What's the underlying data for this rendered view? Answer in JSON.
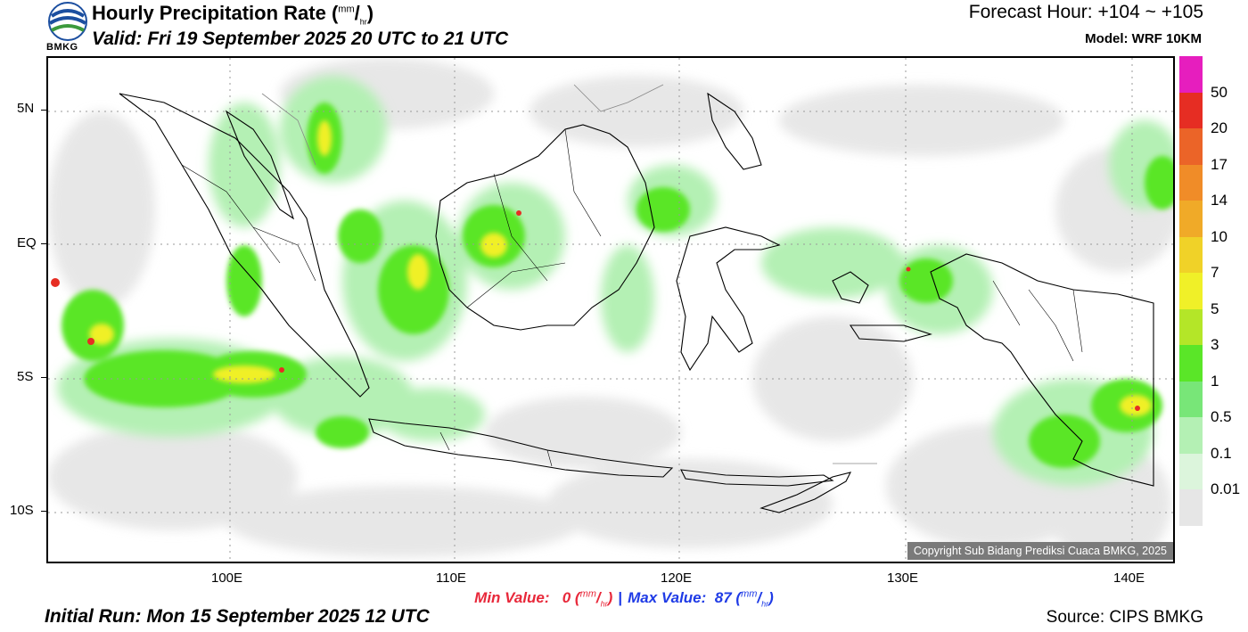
{
  "logo_text": "BMKG",
  "title": {
    "main": "Hourly Precipitation Rate (",
    "unit_num": "mm",
    "unit_den": "hr",
    "close": ")"
  },
  "valid": "Valid: Fri 19 September 2025 20 UTC to 21 UTC",
  "forecast_hour": "Forecast Hour: +104 ~ +105",
  "model": "Model: WRF 10KM",
  "lat_ticks": [
    "5N",
    "EQ",
    "5S",
    "10S"
  ],
  "lon_ticks": [
    "100E",
    "110E",
    "120E",
    "130E",
    "140E"
  ],
  "colorbar": {
    "labels": [
      "50",
      "20",
      "17",
      "14",
      "10",
      "7",
      "5",
      "3",
      "1",
      "0.5",
      "0.1",
      "0.01"
    ],
    "colors": [
      "#e61ebe",
      "#e62d23",
      "#eb6428",
      "#f08c28",
      "#f0aa28",
      "#f0d228",
      "#f0f028",
      "#b4e628",
      "#5ae628",
      "#78e678",
      "#b4f0b4",
      "#dcf5dc",
      "#e6e6e6"
    ]
  },
  "min_value": {
    "label": "Min Value:",
    "value": "0",
    "unit_num": "mm",
    "unit_den": "hr"
  },
  "max_value": {
    "label": "Max Value:",
    "value": "87",
    "unit_num": "mm",
    "unit_den": "hr"
  },
  "separator": "|",
  "initial_run": "Initial Run: Mon 15 September 2025 12 UTC",
  "source": "Source: CIPS BMKG",
  "copyright": "Copyright Sub Bidang Prediksi Cuaca BMKG, 2025"
}
